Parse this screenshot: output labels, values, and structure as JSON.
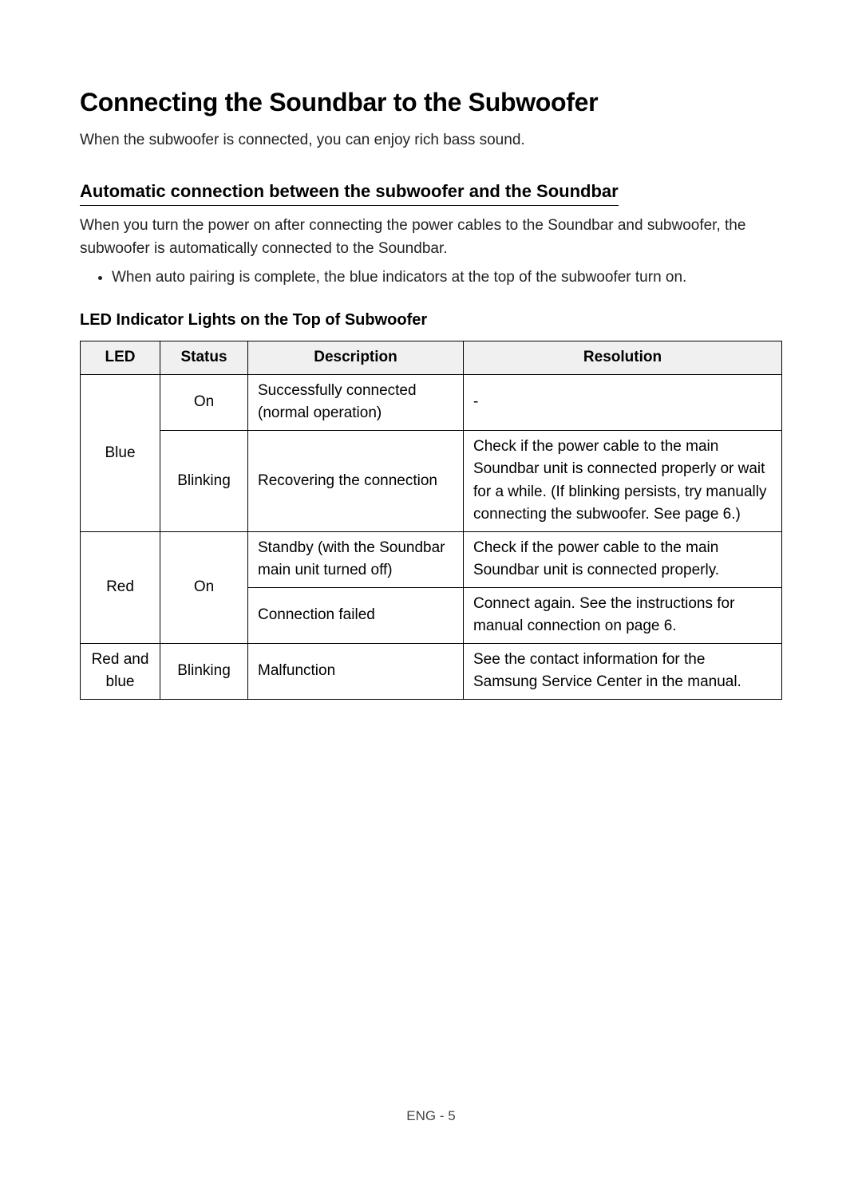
{
  "heading": "Connecting the Soundbar to the Subwoofer",
  "intro": "When the subwoofer is connected, you can enjoy rich bass sound.",
  "subheading": "Automatic connection between the subwoofer and the Soundbar",
  "body": "When you turn the power on after connecting the power cables to the Soundbar and subwoofer, the subwoofer is automatically connected to the Soundbar.",
  "bullet": "When auto pairing is complete, the blue indicators at the top of the subwoofer turn on.",
  "table_title": "LED Indicator Lights on the Top of Subwoofer",
  "table": {
    "headers": {
      "led": "LED",
      "status": "Status",
      "desc": "Description",
      "res": "Resolution"
    },
    "rows": [
      {
        "led": "Blue",
        "status": "On",
        "desc": "Successfully connected (normal operation)",
        "res": "-",
        "led_rowspan": 2
      },
      {
        "status": "Blinking",
        "desc": "Recovering the connection",
        "res": "Check if the power cable to the main Soundbar unit is connected properly or wait for a while. (If blinking persists, try manually connecting the subwoofer. See page 6.)"
      },
      {
        "led": "Red",
        "status": "On",
        "desc": "Standby (with the Soundbar main unit turned off)",
        "res": "Check if the power cable to the main Soundbar unit is connected properly.",
        "led_rowspan": 2,
        "status_rowspan": 2
      },
      {
        "desc": "Connection failed",
        "res": "Connect again. See the instructions for manual connection on page 6."
      },
      {
        "led": "Red and blue",
        "status": "Blinking",
        "desc": "Malfunction",
        "res": "See the contact information for the Samsung Service Center in the manual."
      }
    ]
  },
  "footer": "ENG - 5"
}
